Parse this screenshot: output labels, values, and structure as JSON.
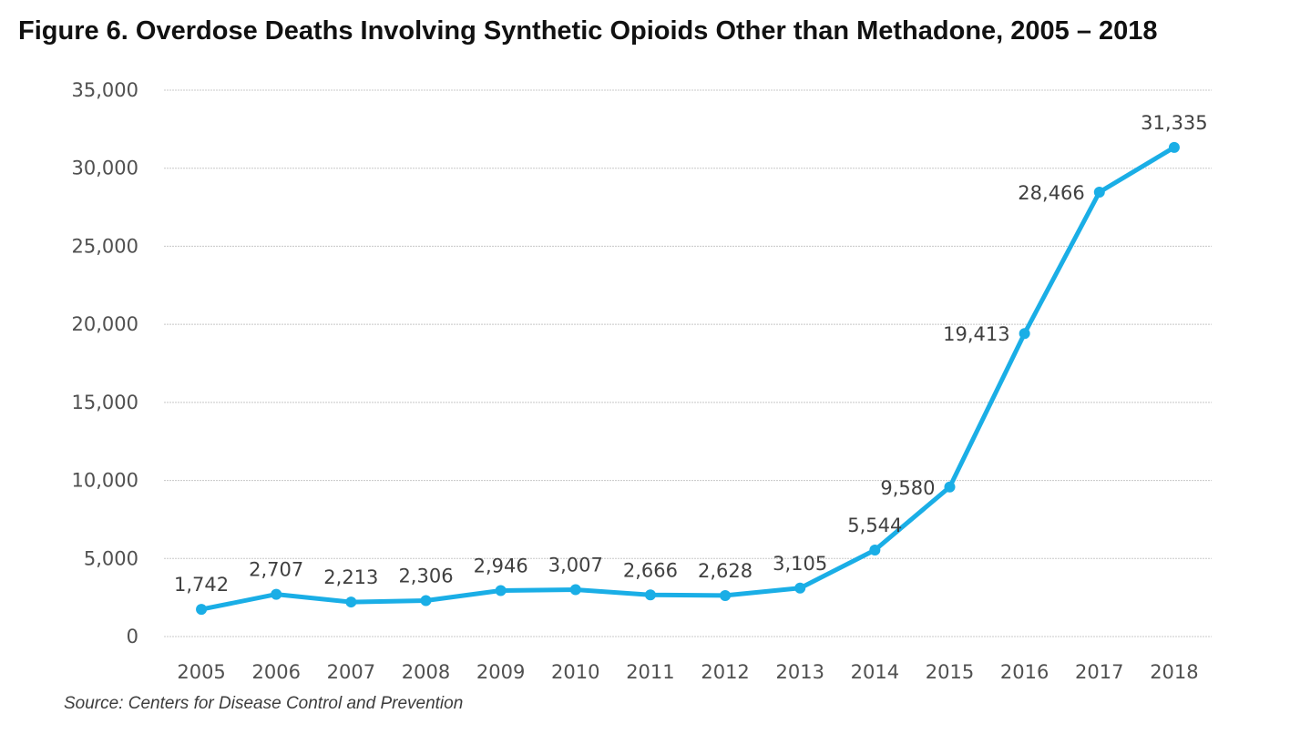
{
  "chart_data": {
    "type": "line",
    "title": "Figure 6. Overdose Deaths Involving Synthetic Opioids Other than Methadone, 2005 – 2018",
    "source": "Source: Centers for Disease Control and Prevention",
    "categories": [
      "2005",
      "2006",
      "2007",
      "2008",
      "2009",
      "2010",
      "2011",
      "2012",
      "2013",
      "2014",
      "2015",
      "2016",
      "2017",
      "2018"
    ],
    "series": [
      {
        "values": [
          1742,
          2707,
          2213,
          2306,
          2946,
          3007,
          2666,
          2628,
          3105,
          5544,
          9580,
          19413,
          28466,
          31335
        ],
        "data_labels": [
          "1,742",
          "2,707",
          "2,213",
          "2,306",
          "2,946",
          "3,007",
          "2,666",
          "2,628",
          "3,105",
          "5,544",
          "9,580",
          "19,413",
          "28,466",
          "31,335"
        ],
        "color": "#1aaee6"
      }
    ],
    "ylim": [
      0,
      35000
    ],
    "y_ticks": [
      0,
      5000,
      10000,
      15000,
      20000,
      25000,
      30000,
      35000
    ],
    "y_tick_labels": [
      "0",
      "5,000",
      "10,000",
      "15,000",
      "20,000",
      "25,000",
      "30,000",
      "35,000"
    ],
    "xlabel": "",
    "ylabel": "",
    "grid": true,
    "legend": "none",
    "gridline_color": "#c8c8c8"
  }
}
